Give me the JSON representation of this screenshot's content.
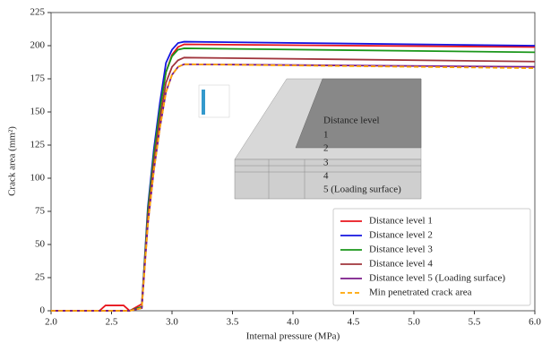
{
  "chart_data": {
    "type": "line",
    "x_label": "Internal pressure (MPa)",
    "y_label": "Crack area (mm²)",
    "x": [
      2.0,
      2.4,
      2.45,
      2.6,
      2.65,
      2.75,
      2.8,
      2.85,
      2.9,
      2.95,
      3.0,
      3.05,
      3.1,
      6.0
    ],
    "series": [
      {
        "name": "Distance level 1",
        "color": "#e8141c",
        "dash": false,
        "values": [
          0,
          0,
          4,
          4,
          0,
          5,
          72,
          118,
          152,
          180,
          193,
          199,
          201,
          199
        ]
      },
      {
        "name": "Distance level 2",
        "color": "#1414e0",
        "dash": false,
        "values": [
          0,
          0,
          0,
          0,
          0,
          3,
          78,
          122,
          157,
          187,
          197,
          202,
          203,
          200
        ]
      },
      {
        "name": "Distance level 3",
        "color": "#1a961a",
        "dash": false,
        "values": [
          0,
          0,
          0,
          0,
          0,
          3,
          75,
          118,
          152,
          180,
          192,
          197,
          198,
          195
        ]
      },
      {
        "name": "Distance level 4",
        "color": "#a0343c",
        "dash": false,
        "values": [
          0,
          0,
          0,
          0,
          0,
          2,
          70,
          112,
          145,
          172,
          184,
          189,
          191,
          188
        ]
      },
      {
        "name": "Distance level 5 (Loading surface)",
        "color": "#7a1a8a",
        "dash": false,
        "values": [
          0,
          0,
          0,
          0,
          0,
          2,
          65,
          106,
          138,
          165,
          178,
          184,
          186,
          184
        ]
      },
      {
        "name": "Min penetrated crack area",
        "color": "#ffa500",
        "dash": true,
        "values": [
          0,
          0,
          0,
          0,
          0,
          2,
          65,
          106,
          138,
          165,
          178,
          184,
          186,
          183
        ]
      }
    ],
    "xlim": [
      2.0,
      6.0
    ],
    "ylim": [
      0,
      225
    ],
    "xticks": [
      {
        "value": 2,
        "label": "2.0"
      },
      {
        "value": 2.5,
        "label": "2.5"
      },
      {
        "value": 3,
        "label": "3.0"
      },
      {
        "value": 3.5,
        "label": "3.5"
      },
      {
        "value": 4,
        "label": "4.0"
      },
      {
        "value": 4.5,
        "label": "4.5"
      },
      {
        "value": 5,
        "label": "5.0"
      },
      {
        "value": 5.5,
        "label": "5.5"
      },
      {
        "value": 6,
        "label": "6.0"
      }
    ],
    "yticks": [
      0,
      25,
      50,
      75,
      100,
      125,
      150,
      175,
      200,
      225
    ],
    "grid": false,
    "legend": "lower right",
    "annotations": [
      "Distance level",
      "1",
      "2",
      "3",
      "4",
      "5 (Loading surface)"
    ]
  }
}
